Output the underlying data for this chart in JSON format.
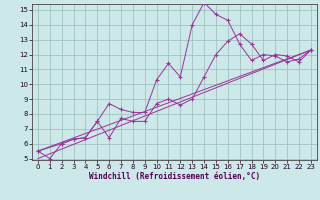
{
  "xlabel": "Windchill (Refroidissement éolien,°C)",
  "background_color": "#cce8e8",
  "grid_color": "#99bbbb",
  "line_color": "#993399",
  "xlim": [
    0,
    23
  ],
  "ylim": [
    5,
    15
  ],
  "xticks": [
    0,
    1,
    2,
    3,
    4,
    5,
    6,
    7,
    8,
    9,
    10,
    11,
    12,
    13,
    14,
    15,
    16,
    17,
    18,
    19,
    20,
    21,
    22,
    23
  ],
  "yticks": [
    5,
    6,
    7,
    8,
    9,
    10,
    11,
    12,
    13,
    14,
    15
  ],
  "series1_x": [
    0,
    1,
    2,
    3,
    4,
    5,
    6,
    7,
    8,
    9,
    10,
    11,
    12,
    13,
    14,
    15,
    16,
    17,
    18,
    19,
    20,
    21,
    22,
    23
  ],
  "series1_y": [
    5.5,
    5.0,
    6.0,
    6.3,
    6.4,
    7.5,
    8.7,
    8.3,
    8.1,
    8.1,
    10.3,
    11.4,
    10.5,
    14.0,
    15.5,
    14.7,
    14.3,
    12.7,
    11.6,
    12.0,
    11.9,
    11.5,
    11.7,
    12.3
  ],
  "series2_x": [
    0,
    2,
    3,
    4,
    5,
    6,
    7,
    8,
    9,
    10,
    11,
    12,
    13,
    14,
    15,
    16,
    17,
    18,
    19,
    20,
    21,
    22,
    23
  ],
  "series2_y": [
    5.5,
    6.0,
    6.3,
    6.4,
    7.5,
    6.4,
    7.7,
    7.5,
    7.5,
    8.7,
    9.0,
    8.6,
    9.0,
    10.5,
    12.0,
    12.9,
    13.4,
    12.7,
    11.6,
    12.0,
    11.9,
    11.5,
    12.3
  ],
  "line3_x": [
    0,
    23
  ],
  "line3_y": [
    5.5,
    12.3
  ],
  "line4_x": [
    0,
    23
  ],
  "line4_y": [
    5.0,
    12.3
  ]
}
